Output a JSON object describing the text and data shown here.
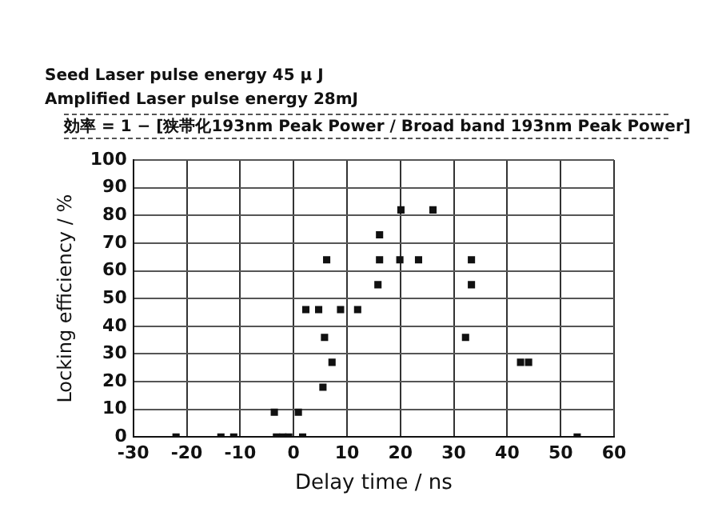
{
  "chart_data": {
    "type": "scatter",
    "title": "効率 = 1 − [狭帯化193nm Peak Power  / Broad band 193nm Peak Power]",
    "annotations": [
      "Seed Laser pulse energy 45 μ J",
      "Amplified Laser pulse energy 28mJ"
    ],
    "xlabel": "Delay time / ns",
    "ylabel": "Locking efficiency / %",
    "series": [
      {
        "color": "#111111",
        "x": [
          -22,
          -13.6,
          -11.2,
          -3.2,
          -2,
          -0.9,
          1.7,
          -3.6,
          0.9,
          5.5,
          7.2,
          5.8,
          2.3,
          4.7,
          8.8,
          12,
          6.2,
          15.8,
          16.1,
          19.9,
          23.4,
          16.1,
          20.1,
          26.1,
          33.3,
          33.3,
          32.2,
          42.5,
          44,
          53.1
        ],
        "values": [
          0,
          0,
          0,
          0,
          0,
          0,
          0,
          9,
          9,
          18,
          27,
          36,
          46,
          46,
          46,
          46,
          64,
          55,
          64,
          64,
          64,
          73,
          82,
          82,
          64,
          55,
          36,
          27,
          27,
          0
        ]
      }
    ],
    "xlim": [
      -30,
      60
    ],
    "xticks": [
      -30,
      -20,
      -10,
      0,
      10,
      20,
      30,
      40,
      50,
      60
    ],
    "ylim": [
      0,
      100
    ],
    "yticks": [
      0,
      10,
      20,
      30,
      40,
      50,
      60,
      70,
      80,
      90,
      100
    ],
    "grid": true,
    "legend": false,
    "marker": "square"
  }
}
